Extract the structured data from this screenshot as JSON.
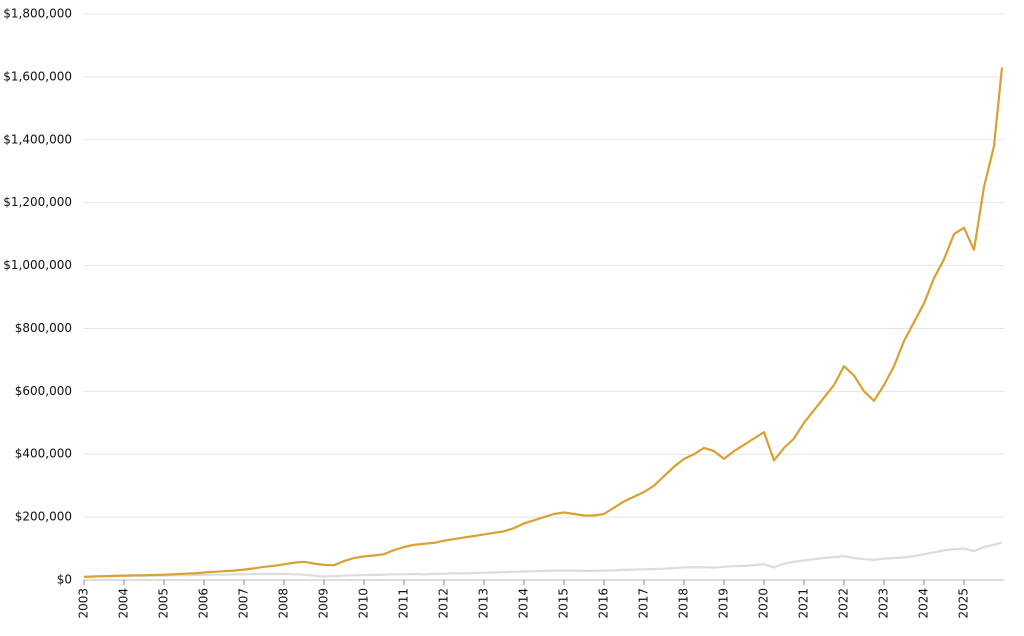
{
  "chart_data": {
    "type": "line",
    "x": [
      2003,
      2003.25,
      2003.5,
      2003.75,
      2004,
      2004.25,
      2004.5,
      2004.75,
      2005,
      2005.25,
      2005.5,
      2005.75,
      2006,
      2006.25,
      2006.5,
      2006.75,
      2007,
      2007.25,
      2007.5,
      2007.75,
      2008,
      2008.25,
      2008.5,
      2008.75,
      2009,
      2009.25,
      2009.5,
      2009.75,
      2010,
      2010.25,
      2010.5,
      2010.75,
      2011,
      2011.25,
      2011.5,
      2011.75,
      2012,
      2012.25,
      2012.5,
      2012.75,
      2013,
      2013.25,
      2013.5,
      2013.75,
      2014,
      2014.25,
      2014.5,
      2014.75,
      2015,
      2015.25,
      2015.5,
      2015.75,
      2016,
      2016.25,
      2016.5,
      2016.75,
      2017,
      2017.25,
      2017.5,
      2017.75,
      2018,
      2018.25,
      2018.5,
      2018.75,
      2019,
      2019.25,
      2019.5,
      2019.75,
      2020,
      2020.25,
      2020.5,
      2020.75,
      2021,
      2021.25,
      2021.5,
      2021.75,
      2022,
      2022.25,
      2022.5,
      2022.75,
      2023,
      2023.25,
      2023.5,
      2023.75,
      2024,
      2024.25,
      2024.5,
      2024.75,
      2025,
      2025.25,
      2025.5,
      2025.75,
      2025.95
    ],
    "series": [
      {
        "color": "#d9a032",
        "values": [
          10000,
          11000,
          12000,
          13000,
          14000,
          15000,
          15000,
          16000,
          17000,
          18000,
          20000,
          21000,
          24000,
          26000,
          28000,
          30000,
          33000,
          37000,
          42000,
          45000,
          50000,
          55000,
          58000,
          52000,
          48000,
          47000,
          60000,
          70000,
          75000,
          78000,
          82000,
          95000,
          105000,
          112000,
          115000,
          118000,
          125000,
          130000,
          135000,
          140000,
          145000,
          150000,
          155000,
          165000,
          180000,
          190000,
          200000,
          210000,
          215000,
          210000,
          205000,
          205000,
          210000,
          230000,
          250000,
          265000,
          280000,
          300000,
          330000,
          360000,
          385000,
          400000,
          420000,
          410000,
          385000,
          410000,
          430000,
          450000,
          470000,
          380000,
          420000,
          450000,
          500000,
          540000,
          580000,
          620000,
          680000,
          650000,
          600000,
          570000,
          620000,
          680000,
          760000,
          820000,
          880000,
          960000,
          1020000,
          1100000,
          1120000,
          1050000,
          1250000,
          1380000,
          1630000
        ]
      },
      {
        "color": "#dcdcdc",
        "values": [
          10000,
          11000,
          12000,
          12000,
          13000,
          13000,
          14000,
          14000,
          14000,
          15000,
          15000,
          16000,
          16000,
          17000,
          17000,
          18000,
          18000,
          19000,
          19000,
          19000,
          19000,
          18000,
          17000,
          14000,
          11000,
          12000,
          14000,
          15000,
          16000,
          16000,
          17000,
          18000,
          18000,
          19000,
          18000,
          19000,
          20000,
          21000,
          21000,
          22000,
          23000,
          24000,
          25000,
          26000,
          27000,
          28000,
          29000,
          30000,
          30000,
          30000,
          29000,
          29000,
          30000,
          31000,
          32000,
          33000,
          34000,
          35000,
          36000,
          38000,
          40000,
          40000,
          41000,
          39000,
          42000,
          44000,
          45000,
          47000,
          50000,
          40000,
          52000,
          58000,
          62000,
          66000,
          70000,
          73000,
          76000,
          70000,
          66000,
          64000,
          68000,
          70000,
          72000,
          76000,
          82000,
          88000,
          94000,
          98000,
          100000,
          92000,
          105000,
          112000,
          120000
        ]
      }
    ],
    "xlim": [
      2003,
      2026
    ],
    "xticks": [
      2003,
      2004,
      2005,
      2006,
      2007,
      2008,
      2009,
      2010,
      2011,
      2012,
      2013,
      2014,
      2015,
      2016,
      2017,
      2018,
      2019,
      2020,
      2021,
      2022,
      2023,
      2024,
      2025
    ],
    "ylim": [
      0,
      1800000
    ],
    "yticks": [
      {
        "value": 0,
        "label": "$0"
      },
      {
        "value": 200000,
        "label": "$200,000"
      },
      {
        "value": 400000,
        "label": "$400,000"
      },
      {
        "value": 600000,
        "label": "$600,000"
      },
      {
        "value": 800000,
        "label": "$800,000"
      },
      {
        "value": 1000000,
        "label": "$1,000,000"
      },
      {
        "value": 1200000,
        "label": "$1,200,000"
      },
      {
        "value": 1400000,
        "label": "$1,400,000"
      },
      {
        "value": 1600000,
        "label": "$1,600,000"
      },
      {
        "value": 1800000,
        "label": "$1,800,000"
      }
    ],
    "grid": true
  }
}
